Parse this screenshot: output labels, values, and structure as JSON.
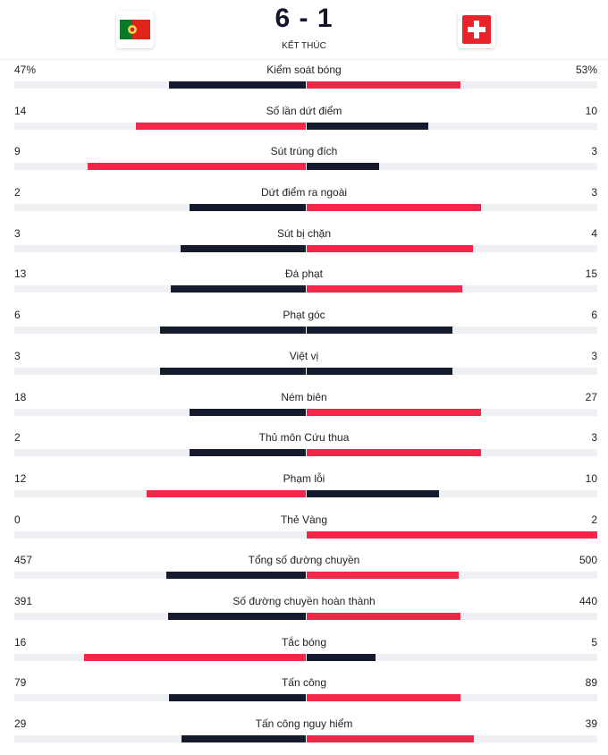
{
  "match": {
    "score": "6 - 1",
    "status": "KẾT THÚC",
    "home_flag_icon": "portugal-flag-icon",
    "away_flag_icon": "switzerland-flag-icon"
  },
  "colors": {
    "dark": "#151a2d",
    "red": "#f2274a",
    "track": "#eef0f4"
  },
  "stats": [
    {
      "label": "Kiểm soát bóng",
      "home": "47%",
      "away": "53%",
      "home_pct": 47,
      "away_pct": 53,
      "home_color": "dark",
      "away_color": "red"
    },
    {
      "label": "Số lần dứt điểm",
      "home": "14",
      "away": "10",
      "home_pct": 58.3,
      "away_pct": 41.7,
      "home_color": "red",
      "away_color": "dark"
    },
    {
      "label": "Sút trúng đích",
      "home": "9",
      "away": "3",
      "home_pct": 75,
      "away_pct": 25,
      "home_color": "red",
      "away_color": "dark"
    },
    {
      "label": "Dứt điểm ra ngoài",
      "home": "2",
      "away": "3",
      "home_pct": 40,
      "away_pct": 60,
      "home_color": "dark",
      "away_color": "red"
    },
    {
      "label": "Sút bị chặn",
      "home": "3",
      "away": "4",
      "home_pct": 42.9,
      "away_pct": 57.1,
      "home_color": "dark",
      "away_color": "red"
    },
    {
      "label": "Đá phạt",
      "home": "13",
      "away": "15",
      "home_pct": 46.4,
      "away_pct": 53.6,
      "home_color": "dark",
      "away_color": "red"
    },
    {
      "label": "Phạt góc",
      "home": "6",
      "away": "6",
      "home_pct": 50,
      "away_pct": 50,
      "home_color": "dark",
      "away_color": "dark"
    },
    {
      "label": "Việt vị",
      "home": "3",
      "away": "3",
      "home_pct": 50,
      "away_pct": 50,
      "home_color": "dark",
      "away_color": "dark"
    },
    {
      "label": "Ném biên",
      "home": "18",
      "away": "27",
      "home_pct": 40,
      "away_pct": 60,
      "home_color": "dark",
      "away_color": "red"
    },
    {
      "label": "Thủ môn Cứu thua",
      "home": "2",
      "away": "3",
      "home_pct": 40,
      "away_pct": 60,
      "home_color": "dark",
      "away_color": "red"
    },
    {
      "label": "Phạm lỗi",
      "home": "12",
      "away": "10",
      "home_pct": 54.5,
      "away_pct": 45.5,
      "home_color": "red",
      "away_color": "dark"
    },
    {
      "label": "Thẻ Vàng",
      "home": "0",
      "away": "2",
      "home_pct": 0,
      "away_pct": 100,
      "home_color": "dark",
      "away_color": "red"
    },
    {
      "label": "Tổng số đường chuyền",
      "home": "457",
      "away": "500",
      "home_pct": 47.8,
      "away_pct": 52.2,
      "home_color": "dark",
      "away_color": "red"
    },
    {
      "label": "Số đường chuyền hoàn thành",
      "home": "391",
      "away": "440",
      "home_pct": 47.1,
      "away_pct": 52.9,
      "home_color": "dark",
      "away_color": "red"
    },
    {
      "label": "Tắc bóng",
      "home": "16",
      "away": "5",
      "home_pct": 76.2,
      "away_pct": 23.8,
      "home_color": "red",
      "away_color": "dark"
    },
    {
      "label": "Tấn công",
      "home": "79",
      "away": "89",
      "home_pct": 47,
      "away_pct": 53,
      "home_color": "dark",
      "away_color": "red"
    },
    {
      "label": "Tấn công nguy hiểm",
      "home": "29",
      "away": "39",
      "home_pct": 42.6,
      "away_pct": 57.4,
      "home_color": "dark",
      "away_color": "red"
    }
  ]
}
